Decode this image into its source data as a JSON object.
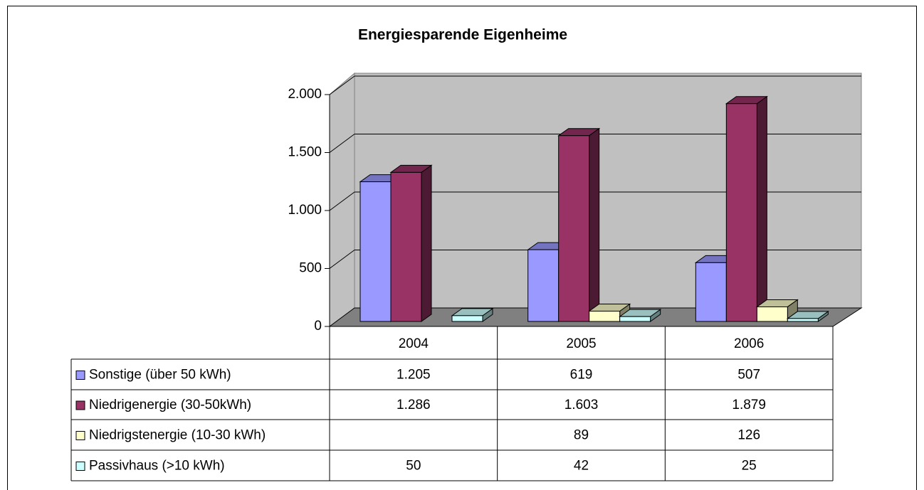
{
  "chart_data": {
    "type": "bar3d",
    "title": "Energiesparende Eigenheime",
    "categories": [
      "2004",
      "2005",
      "2006"
    ],
    "series": [
      {
        "name": "Sonstige (über 50 kWh)",
        "color": "#9999ff",
        "values": [
          1205,
          619,
          507
        ],
        "value_labels": [
          "1.205",
          "619",
          "507"
        ]
      },
      {
        "name": "Niedrigenergie (30-50kWh)",
        "color": "#993366",
        "values": [
          1286,
          1603,
          1879
        ],
        "value_labels": [
          "1.286",
          "1.603",
          "1.879"
        ]
      },
      {
        "name": "Niedrigstenergie (10-30 kWh)",
        "color": "#ffffcc",
        "values": [
          null,
          89,
          126
        ],
        "value_labels": [
          null,
          "89",
          "126"
        ]
      },
      {
        "name": "Passivhaus (>10 kWh)",
        "color": "#ccffff",
        "values": [
          50,
          42,
          25
        ],
        "value_labels": [
          "50",
          "42",
          "25"
        ]
      }
    ],
    "ylim": [
      0,
      2000
    ],
    "yticks": [
      0,
      500,
      {
        "value": 1000,
        "label": "1.000"
      },
      {
        "value": 1500,
        "label": "1.500"
      },
      {
        "value": 2000,
        "label": "2.000"
      }
    ],
    "grid": true
  }
}
